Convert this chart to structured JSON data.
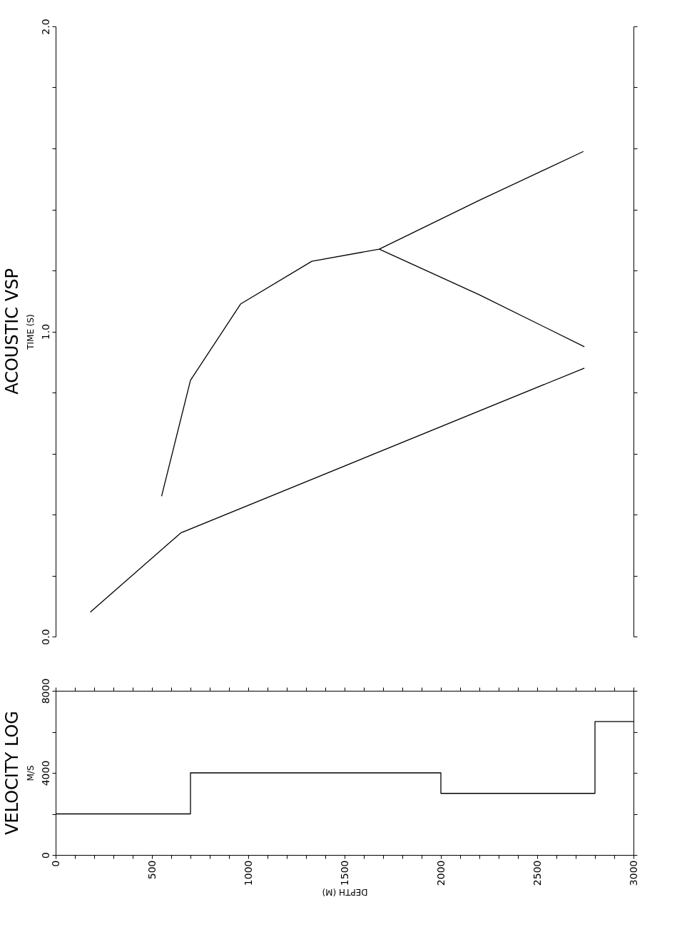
{
  "chart_data": [
    {
      "type": "line",
      "title": "ACOUSTIC VSP",
      "ylabel": "TIME (S)",
      "xlim": [
        0,
        3000
      ],
      "ylim": [
        0,
        2
      ],
      "tick_labels": "y",
      "yticks": [
        {
          "value": 0,
          "label": "0.0"
        },
        {
          "value": 0.2,
          "label": null
        },
        {
          "value": 0.4,
          "label": null
        },
        {
          "value": 0.6,
          "label": null
        },
        {
          "value": 0.8,
          "label": null
        },
        {
          "value": 1,
          "label": "1.0"
        },
        {
          "value": 1.2,
          "label": null
        },
        {
          "value": 1.4,
          "label": null
        },
        {
          "value": 1.6,
          "label": null
        },
        {
          "value": 1.8,
          "label": null
        },
        {
          "value": 2,
          "label": "2.0"
        }
      ],
      "series": [
        {
          "color": "#000000",
          "x": [
            180,
            650,
            2745
          ],
          "values": [
            0.08,
            0.34,
            0.88
          ]
        },
        {
          "color": "#000000",
          "x": [
            550,
            700,
            960,
            1330,
            1680,
            2200,
            2740
          ],
          "values": [
            0.46,
            0.84,
            1.09,
            1.23,
            1.27,
            1.43,
            1.59
          ]
        },
        {
          "color": "#000000",
          "x": [
            1680,
            2200,
            2745
          ],
          "values": [
            1.27,
            1.12,
            0.95
          ]
        }
      ]
    },
    {
      "type": "step",
      "title": "VELOCITY LOG",
      "ylabel": "M/S",
      "xlabel": "DEPTH (M)",
      "xlim": [
        0,
        3000
      ],
      "ylim": [
        0,
        8000
      ],
      "xticks": [
        0,
        {
          "value": 100,
          "label": null
        },
        {
          "value": 200,
          "label": null
        },
        {
          "value": 300,
          "label": null
        },
        {
          "value": 400,
          "label": null
        },
        500,
        {
          "value": 600,
          "label": null
        },
        {
          "value": 700,
          "label": null
        },
        {
          "value": 800,
          "label": null
        },
        {
          "value": 900,
          "label": null
        },
        1000,
        {
          "value": 1100,
          "label": null
        },
        {
          "value": 1200,
          "label": null
        },
        {
          "value": 1300,
          "label": null
        },
        {
          "value": 1400,
          "label": null
        },
        1500,
        {
          "value": 1600,
          "label": null
        },
        {
          "value": 1700,
          "label": null
        },
        {
          "value": 1800,
          "label": null
        },
        {
          "value": 1900,
          "label": null
        },
        2000,
        {
          "value": 2100,
          "label": null
        },
        {
          "value": 2200,
          "label": null
        },
        {
          "value": 2300,
          "label": null
        },
        {
          "value": 2400,
          "label": null
        },
        2500,
        {
          "value": 2600,
          "label": null
        },
        {
          "value": 2700,
          "label": null
        },
        {
          "value": 2800,
          "label": null
        },
        {
          "value": 2900,
          "label": null
        },
        3000
      ],
      "yticks": [
        0,
        {
          "value": 2000,
          "label": null
        },
        4000,
        {
          "value": 6000,
          "label": null
        },
        8000
      ],
      "series": [
        {
          "color": "#000000",
          "x": [
            0,
            700,
            2000,
            2800,
            3000
          ],
          "values": [
            2000,
            4000,
            3000,
            6500,
            6500
          ]
        }
      ]
    }
  ]
}
